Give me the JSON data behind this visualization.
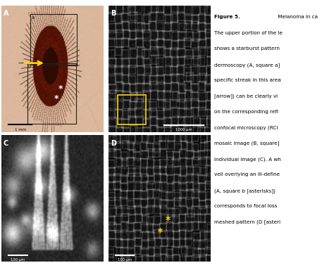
{
  "bg_color": "#ffffff",
  "panel_labels": [
    "A",
    "B",
    "C",
    "D"
  ],
  "caption_bold": "Figure 5.",
  "caption_rest": " Melanoma in ca",
  "caption_lines": [
    "The upper portion of the le",
    "shows a starburst pattern",
    "dermoscopy (A, square a]",
    "specific streak in this area",
    "[arrow]) can be clearly vi",
    "on the corresponding refl",
    "confocal microscopy (RCI",
    "mosaic image (B, square]",
    "individual image (C). A wh",
    "veil overlying an ill-define",
    "(A, square b [asterisks])",
    "corresponds to focal loss",
    "meshed pattern (D [asteri"
  ],
  "scale_bar_A": "1 mm",
  "scale_bar_B": "1000 μm",
  "scale_bar_C": "100 μm",
  "scale_bar_D": "100 μm"
}
